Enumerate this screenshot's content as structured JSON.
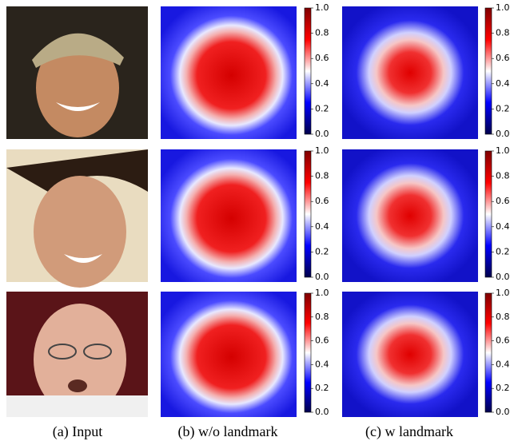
{
  "figure": {
    "captions": [
      "(a) Input",
      "(b) w/o landmark",
      "(c) w landmark"
    ],
    "colorbar_ticks": [
      "0.0",
      "0.2",
      "0.4",
      "0.6",
      "0.8",
      "1.0"
    ]
  }
}
